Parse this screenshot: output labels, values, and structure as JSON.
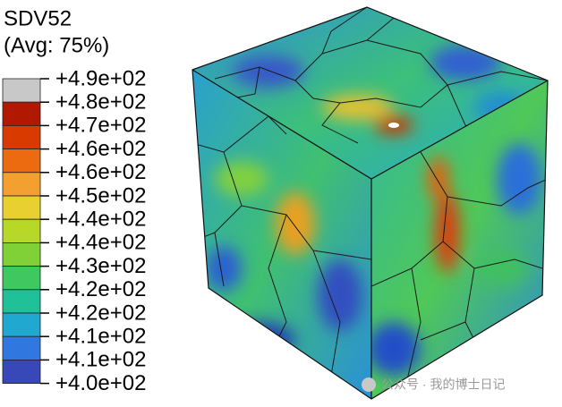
{
  "legend": {
    "title": "SDV52",
    "subtitle": "(Avg: 75%)",
    "labels": [
      "+4.9e+02",
      "+4.8e+02",
      "+4.7e+02",
      "+4.6e+02",
      "+4.6e+02",
      "+4.5e+02",
      "+4.4e+02",
      "+4.4e+02",
      "+4.3e+02",
      "+4.2e+02",
      "+4.2e+02",
      "+4.1e+02",
      "+4.1e+02",
      "+4.0e+02"
    ],
    "colors": [
      "#c8c8c8",
      "#b01800",
      "#d83a00",
      "#ec6a10",
      "#f4a030",
      "#e8d030",
      "#b8d828",
      "#80d038",
      "#40c860",
      "#20c098",
      "#20a8d0",
      "#3078e0",
      "#3848b8"
    ]
  },
  "watermark": "公众号 · 我的博士日记"
}
